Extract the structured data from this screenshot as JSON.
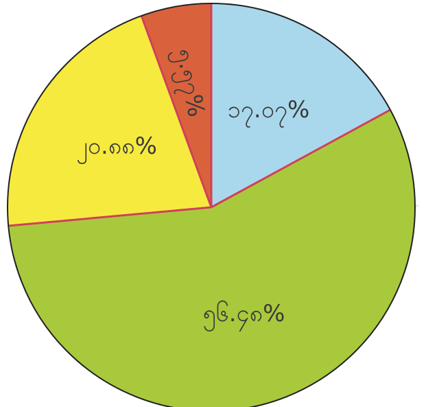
{
  "chart_data": {
    "type": "pie",
    "categories": [
      null,
      null,
      null,
      null
    ],
    "values": [
      17.07,
      56.48,
      20.88,
      5.57
    ],
    "value_labels": [
      "၁၇.၀၇%",
      "၅၆.၄၈%",
      "၂၀.၈၈%",
      "၅.၅၇%"
    ],
    "colors": [
      "#a9d8ec",
      "#a9c93c",
      "#f7ea3f",
      "#d9623c"
    ]
  }
}
